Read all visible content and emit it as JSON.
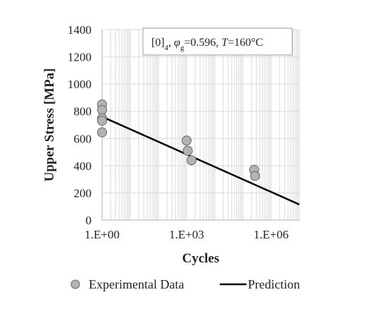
{
  "chart_data": {
    "type": "scatter",
    "title": "",
    "annotation": {
      "label_html": "[0]<tspan baseline-shift='sub' font-size='11'>4</tspan>, <tspan font-style='italic'>φ</tspan><tspan baseline-shift='sub' font-size='11'>g</tspan>=0.596, <tspan font-style='italic'>T</tspan>=160°C",
      "text": "[0]4, φg=0.596, T=160°C"
    },
    "xlabel": "Cycles",
    "ylabel": "Upper Stress [MPa]",
    "x_scale": "log10",
    "xlim": [
      1,
      10000000
    ],
    "ylim": [
      0,
      1400
    ],
    "x_ticks": [
      {
        "value": 1,
        "label": "1.E+00"
      },
      {
        "value": 1000,
        "label": "1.E+03"
      },
      {
        "value": 1000000,
        "label": "1.E+06"
      }
    ],
    "y_ticks": [
      0,
      200,
      400,
      600,
      800,
      1000,
      1200,
      1400
    ],
    "grid": true,
    "legend_position": "bottom",
    "colors": {
      "marker_fill": "#b3b3b3",
      "marker_stroke": "#666666",
      "line": "#000000",
      "grid": "#d9d9d9",
      "axis": "#bfbfbf"
    },
    "series": [
      {
        "name": "Experimental Data",
        "kind": "scatter",
        "points": [
          {
            "x": 1,
            "y": 850
          },
          {
            "x": 1,
            "y": 810
          },
          {
            "x": 1,
            "y": 750
          },
          {
            "x": 1,
            "y": 730
          },
          {
            "x": 1,
            "y": 645
          },
          {
            "x": 1000,
            "y": 585
          },
          {
            "x": 1100,
            "y": 510
          },
          {
            "x": 1500,
            "y": 440
          },
          {
            "x": 250000,
            "y": 370
          },
          {
            "x": 270000,
            "y": 325
          }
        ]
      },
      {
        "name": "Prediction",
        "kind": "line",
        "points": [
          {
            "x": 1,
            "y": 760
          },
          {
            "x": 10000000,
            "y": 115
          }
        ]
      }
    ]
  }
}
